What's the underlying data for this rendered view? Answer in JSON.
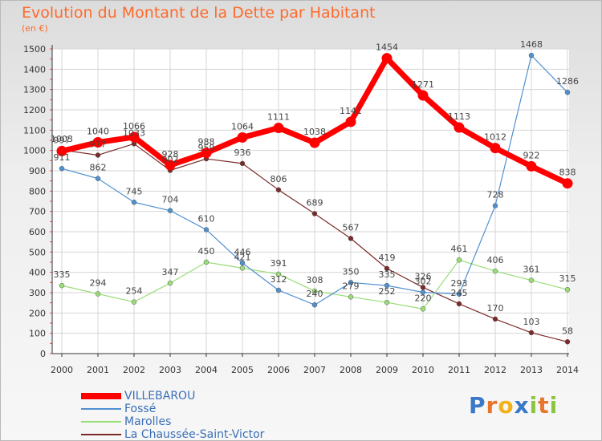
{
  "chart_data": {
    "type": "line",
    "title": "Evolution du Montant de la Dette par Habitant",
    "subtitle": "(en €)",
    "x": [
      "2000",
      "2001",
      "2002",
      "2003",
      "2004",
      "2005",
      "2006",
      "2007",
      "2008",
      "2009",
      "2010",
      "2011",
      "2012",
      "2013",
      "2014"
    ],
    "ylim": [
      0,
      1500
    ],
    "yticks": [
      0,
      100,
      200,
      300,
      400,
      500,
      600,
      700,
      800,
      900,
      1000,
      1100,
      1200,
      1300,
      1400,
      1500
    ],
    "grid": true,
    "legend": "bottom-left",
    "series": [
      {
        "name": "VILLEBAROU",
        "color": "#ff0000",
        "values": [
          997,
          1040,
          1066,
          928,
          988,
          1064,
          1111,
          1038,
          1141,
          1454,
          1271,
          1113,
          1012,
          922,
          838
        ]
      },
      {
        "name": "Fossé",
        "color": "#4f90d0",
        "values": [
          911,
          862,
          745,
          704,
          610,
          446,
          312,
          240,
          350,
          335,
          302,
          293,
          728,
          1468,
          1286
        ]
      },
      {
        "name": "Marolles",
        "color": "#99dd77",
        "values": [
          335,
          294,
          254,
          347,
          450,
          421,
          391,
          308,
          279,
          252,
          220,
          461,
          406,
          361,
          315
        ]
      },
      {
        "name": "La Chaussée-Saint-Victor",
        "color": "#7b2a2a",
        "values": [
          1003,
          977,
          1033,
          902,
          959,
          936,
          806,
          689,
          567,
          419,
          326,
          245,
          170,
          103,
          58
        ]
      }
    ]
  },
  "logo": {
    "letters": [
      "P",
      "r",
      "o",
      "x",
      "i",
      "t",
      "i"
    ],
    "colors": [
      "#3a78c8",
      "#e8752a",
      "#f2b21c",
      "#3a78c8",
      "#8cc63f",
      "#e8752a",
      "#8cc63f"
    ]
  }
}
